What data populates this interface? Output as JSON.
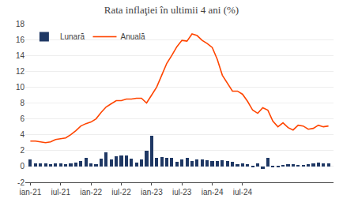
{
  "chart_data": {
    "type": "bar",
    "title": "Rata inflaţiei în ultimii 4 ani (%)",
    "categories": [
      "ian-21",
      null,
      null,
      null,
      null,
      null,
      "iul-21",
      null,
      null,
      null,
      null,
      null,
      "ian-22",
      null,
      null,
      null,
      null,
      null,
      "iul-22",
      null,
      null,
      null,
      null,
      null,
      "ian-23",
      null,
      null,
      null,
      null,
      null,
      "iul-23",
      null,
      null,
      null,
      null,
      null,
      "ian-24",
      null,
      null,
      null,
      null,
      null,
      "iul-24",
      null,
      null,
      null,
      null,
      null,
      null,
      null,
      null,
      null,
      null,
      null,
      null,
      null,
      null,
      null,
      null,
      null
    ],
    "series": [
      {
        "name": "Lunară",
        "type": "bar",
        "color": "#1F3864",
        "values": [
          0.9,
          0.4,
          0.4,
          0.4,
          0.3,
          0.4,
          0.4,
          0.3,
          0.4,
          0.5,
          0.7,
          1.1,
          0.4,
          0.3,
          1.0,
          1.8,
          0.9,
          1.3,
          1.4,
          1.4,
          1.0,
          0.5,
          0.9,
          2.0,
          3.9,
          1.1,
          1.2,
          1.1,
          1.1,
          0.6,
          0.9,
          1.1,
          0.7,
          0.9,
          0.9,
          0.8,
          0.7,
          0.7,
          0.8,
          0.7,
          0.6,
          0.3,
          0.4,
          0.3,
          -0.1,
          0.4,
          -0.3,
          1.1,
          -0.1,
          -0.1,
          0.2,
          0.3,
          0.3,
          0.2,
          0.2,
          0.3,
          0.4,
          0.5,
          0.4,
          0.4
        ]
      },
      {
        "name": "Anuală",
        "type": "line",
        "color": "#FF4500",
        "values": [
          3.2,
          3.2,
          3.1,
          3.0,
          3.1,
          3.4,
          3.5,
          3.6,
          4.0,
          4.5,
          5.1,
          5.4,
          5.6,
          6.0,
          6.8,
          7.5,
          7.9,
          8.3,
          8.3,
          8.5,
          8.5,
          8.6,
          8.6,
          8.0,
          9.0,
          10.0,
          11.5,
          13.0,
          14.0,
          15.1,
          15.9,
          15.8,
          16.7,
          16.5,
          15.9,
          15.5,
          15.0,
          13.5,
          11.5,
          10.5,
          9.5,
          9.5,
          9.1,
          8.2,
          7.1,
          6.7,
          7.4,
          7.1,
          5.7,
          5.0,
          5.5,
          4.9,
          4.6,
          5.2,
          5.1,
          4.7,
          4.8,
          5.2,
          5.0,
          5.1
        ]
      }
    ],
    "ylim": [
      -2,
      18
    ],
    "yticks": [
      -2,
      0,
      2,
      4,
      6,
      8,
      10,
      12,
      14,
      16,
      18
    ],
    "grid": true,
    "legend": "upper left"
  }
}
